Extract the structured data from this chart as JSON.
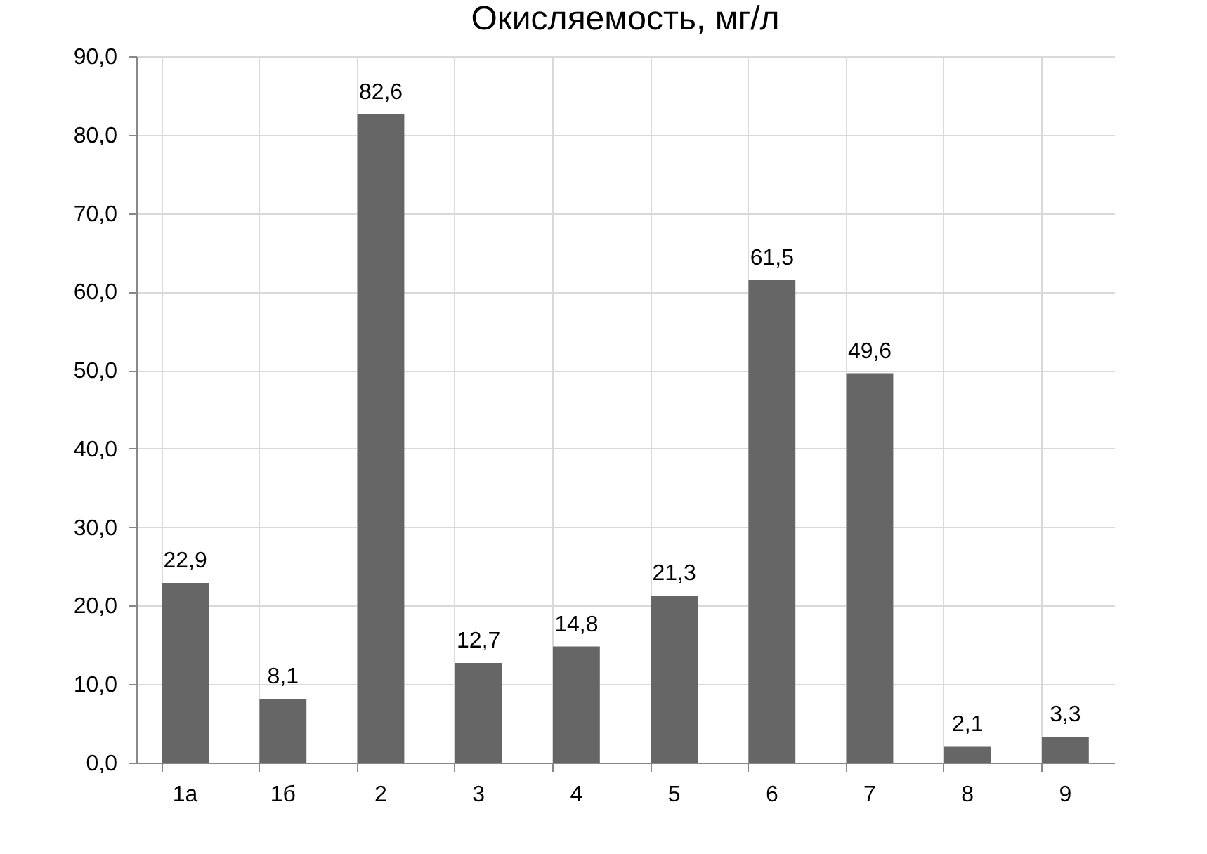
{
  "chart_data": {
    "type": "bar",
    "title": "Окисляемость, мг/л",
    "categories": [
      "1а",
      "1б",
      "2",
      "3",
      "4",
      "5",
      "6",
      "7",
      "8",
      "9"
    ],
    "values": [
      22.9,
      8.1,
      82.6,
      12.7,
      14.8,
      21.3,
      61.5,
      49.6,
      2.1,
      3.3
    ],
    "value_labels": [
      "22,9",
      "8,1",
      "82,6",
      "12,7",
      "14,8",
      "21,3",
      "61,5",
      "49,6",
      "2,1",
      "3,3"
    ],
    "color": "#666666",
    "ylim": [
      0,
      90
    ],
    "yticks": [
      {
        "value": 0,
        "label": "0,0"
      },
      {
        "value": 10,
        "label": "10,0"
      },
      {
        "value": 20,
        "label": "20,0"
      },
      {
        "value": 30,
        "label": "30,0"
      },
      {
        "value": 40,
        "label": "40,0"
      },
      {
        "value": 50,
        "label": "50,0"
      },
      {
        "value": 60,
        "label": "60,0"
      },
      {
        "value": 70,
        "label": "70,0"
      },
      {
        "value": 80,
        "label": "80,0"
      },
      {
        "value": 90,
        "label": "90,0"
      }
    ],
    "grid": true
  }
}
